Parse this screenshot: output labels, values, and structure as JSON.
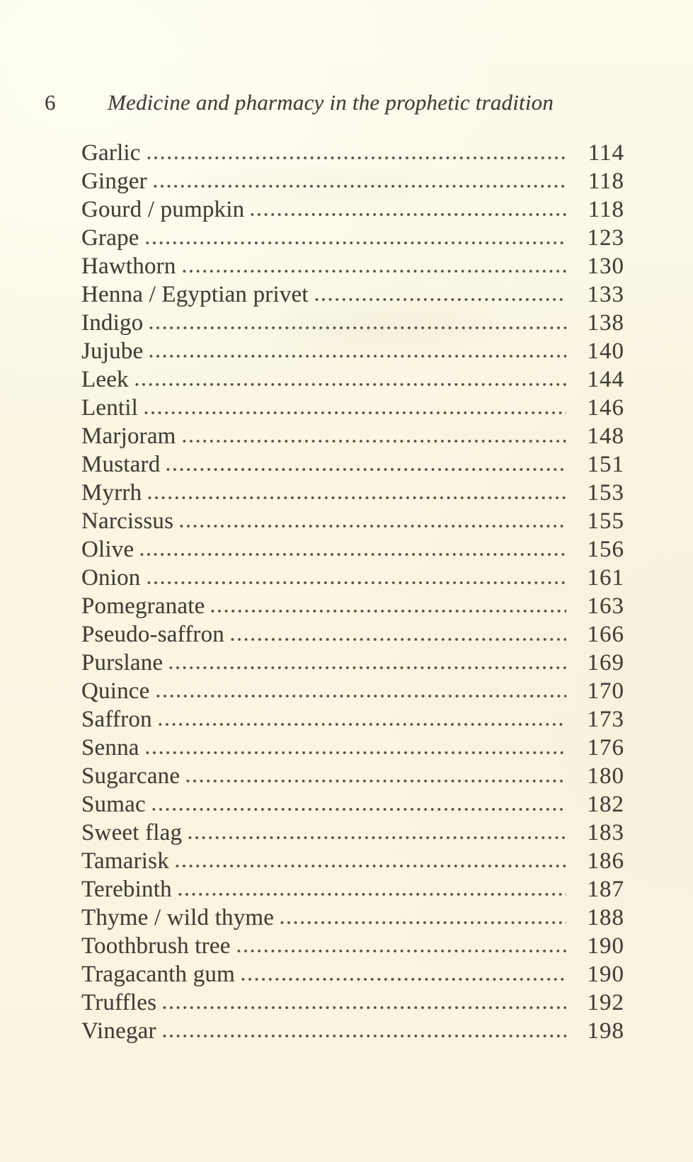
{
  "page": {
    "number": "6",
    "running_head": "Medicine and pharmacy in the prophetic tradition"
  },
  "toc": {
    "entries": [
      {
        "title": "Garlic",
        "page": "114"
      },
      {
        "title": "Ginger",
        "page": "118"
      },
      {
        "title": "Gourd / pumpkin",
        "page": "118"
      },
      {
        "title": "Grape",
        "page": "123"
      },
      {
        "title": "Hawthorn",
        "page": "130"
      },
      {
        "title": "Henna / Egyptian privet",
        "page": "133"
      },
      {
        "title": "Indigo",
        "page": "138"
      },
      {
        "title": "Jujube",
        "page": "140"
      },
      {
        "title": "Leek",
        "page": "144"
      },
      {
        "title": "Lentil",
        "page": "146"
      },
      {
        "title": "Marjoram",
        "page": "148"
      },
      {
        "title": "Mustard",
        "page": "151"
      },
      {
        "title": "Myrrh",
        "page": "153"
      },
      {
        "title": "Narcissus",
        "page": "155"
      },
      {
        "title": "Olive",
        "page": "156"
      },
      {
        "title": "Onion",
        "page": "161"
      },
      {
        "title": "Pomegranate",
        "page": "163"
      },
      {
        "title": "Pseudo-saffron",
        "page": "166"
      },
      {
        "title": "Purslane",
        "page": "169"
      },
      {
        "title": "Quince",
        "page": "170"
      },
      {
        "title": "Saffron",
        "page": "173"
      },
      {
        "title": "Senna",
        "page": "176"
      },
      {
        "title": "Sugarcane",
        "page": "180"
      },
      {
        "title": "Sumac",
        "page": "182"
      },
      {
        "title": "Sweet flag",
        "page": "183"
      },
      {
        "title": "Tamarisk",
        "page": "186"
      },
      {
        "title": "Terebinth",
        "page": "187"
      },
      {
        "title": "Thyme / wild thyme",
        "page": "188"
      },
      {
        "title": "Toothbrush tree",
        "page": "190"
      },
      {
        "title": "Tragacanth gum",
        "page": "190"
      },
      {
        "title": "Truffles",
        "page": "192"
      },
      {
        "title": "Vinegar",
        "page": "198"
      }
    ]
  },
  "colors": {
    "paper": "#fbf7e5",
    "paper_highlight": "#fffef2",
    "ink": "#413d36",
    "leader_dot": "#534e43"
  }
}
